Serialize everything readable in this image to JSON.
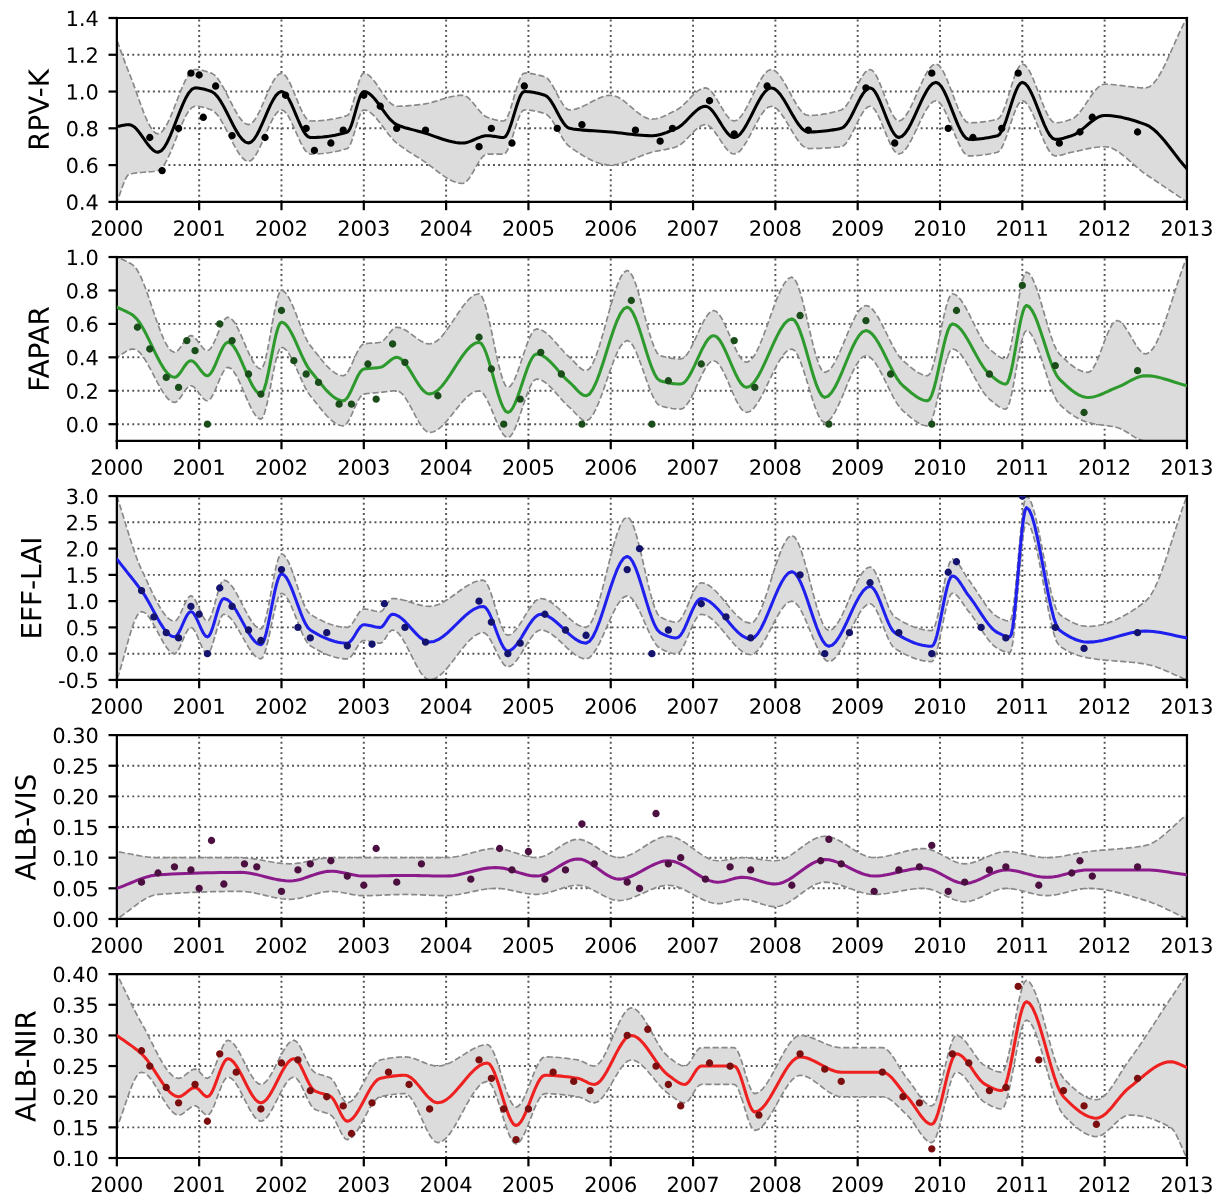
{
  "chart_data": [
    {
      "type": "line",
      "ylabel": "RPV-K",
      "xlim": [
        2000,
        2013
      ],
      "xticks": [
        2000,
        2001,
        2002,
        2003,
        2004,
        2005,
        2006,
        2007,
        2008,
        2009,
        2010,
        2011,
        2012,
        2013
      ],
      "ylim": [
        0.4,
        1.4
      ],
      "yticks": [
        0.4,
        0.6,
        0.8,
        {
          "value": 1,
          "label": "1.0"
        },
        1.2,
        1.4
      ],
      "grid": true,
      "series": [
        {
          "type": "line",
          "color": "#000000",
          "line_style": "solid",
          "x": [
            2000,
            2000.15,
            2000.5,
            2000.95,
            2001.15,
            2001.6,
            2002.0,
            2002.35,
            2002.8,
            2003.0,
            2003.4,
            2003.7,
            2004.2,
            2004.5,
            2004.7,
            2004.95,
            2005.2,
            2005.5,
            2006.0,
            2006.5,
            2006.8,
            2007.15,
            2007.5,
            2007.95,
            2008.4,
            2008.8,
            2009.15,
            2009.5,
            2009.95,
            2010.35,
            2010.7,
            2011.0,
            2011.4,
            2011.6,
            2012.0,
            2012.5,
            2013
          ],
          "values": [
            0.81,
            0.82,
            0.67,
            1.02,
            1.0,
            0.72,
            1.0,
            0.75,
            0.78,
            1.0,
            0.82,
            0.78,
            0.72,
            0.76,
            0.75,
            1.0,
            0.98,
            0.8,
            0.78,
            0.76,
            0.8,
            0.92,
            0.75,
            1.02,
            0.78,
            0.8,
            1.02,
            0.75,
            1.05,
            0.74,
            0.76,
            1.05,
            0.74,
            0.76,
            0.87,
            0.82,
            0.58
          ],
          "lower": [
            0.4,
            0.55,
            0.57,
            0.92,
            0.9,
            0.62,
            0.9,
            0.66,
            0.69,
            0.9,
            0.72,
            0.63,
            0.5,
            0.66,
            0.66,
            0.9,
            0.88,
            0.7,
            0.6,
            0.67,
            0.7,
            0.82,
            0.66,
            0.92,
            0.69,
            0.7,
            0.92,
            0.66,
            0.95,
            0.65,
            0.67,
            0.95,
            0.65,
            0.67,
            0.7,
            0.55,
            0.4
          ],
          "upper": [
            1.28,
            1.1,
            0.77,
            1.12,
            1.1,
            0.82,
            1.1,
            0.84,
            0.87,
            1.1,
            0.92,
            0.93,
            0.98,
            0.86,
            0.84,
            1.1,
            1.08,
            0.9,
            0.98,
            0.85,
            0.9,
            1.02,
            0.84,
            1.12,
            0.87,
            0.9,
            1.12,
            0.84,
            1.15,
            0.83,
            0.85,
            1.15,
            0.83,
            0.85,
            1.04,
            1.02,
            1.4
          ]
        },
        {
          "type": "scatter",
          "color": "#000000",
          "marker": "circle",
          "x": [
            2000.4,
            2000.55,
            2000.75,
            2000.9,
            2001.0,
            2001.05,
            2001.2,
            2001.4,
            2001.8,
            2002.05,
            2002.3,
            2002.4,
            2002.6,
            2002.75,
            2003.0,
            2003.2,
            2003.4,
            2003.75,
            2004.4,
            2004.55,
            2004.8,
            2004.95,
            2005.35,
            2005.65,
            2006.3,
            2006.6,
            2006.75,
            2007.2,
            2007.5,
            2007.9,
            2008.4,
            2009.1,
            2009.45,
            2009.9,
            2010.1,
            2010.4,
            2010.75,
            2010.95,
            2011.45,
            2011.7,
            2011.85,
            2012.4
          ],
          "values": [
            0.75,
            0.57,
            0.8,
            1.1,
            1.09,
            0.86,
            1.03,
            0.76,
            0.75,
            0.98,
            0.8,
            0.68,
            0.72,
            0.79,
            0.98,
            0.92,
            0.8,
            0.79,
            0.7,
            0.8,
            0.72,
            1.03,
            0.8,
            0.82,
            0.79,
            0.73,
            0.8,
            0.95,
            0.77,
            1.03,
            0.79,
            1.02,
            0.72,
            1.1,
            0.8,
            0.75,
            0.8,
            1.1,
            0.72,
            0.78,
            0.86,
            0.78
          ]
        }
      ]
    },
    {
      "type": "line",
      "ylabel": "FAPAR",
      "xlim": [
        2000,
        2013
      ],
      "xticks": [
        2000,
        2001,
        2002,
        2003,
        2004,
        2005,
        2006,
        2007,
        2008,
        2009,
        2010,
        2011,
        2012,
        2013
      ],
      "ylim": [
        -0.1,
        1.0
      ],
      "yticks": [
        {
          "value": 0,
          "label": "0.0"
        },
        0.2,
        0.4,
        0.6,
        0.8,
        {
          "value": 1,
          "label": "1.0"
        }
      ],
      "grid": true,
      "series": [
        {
          "type": "line",
          "color": "#2e9a2e",
          "line_style": "solid",
          "x": [
            2000,
            2000.2,
            2000.7,
            2000.9,
            2001.1,
            2001.35,
            2001.75,
            2002.0,
            2002.35,
            2002.75,
            2003.0,
            2003.2,
            2003.4,
            2003.8,
            2004.4,
            2004.75,
            2005.1,
            2005.5,
            2005.7,
            2006.2,
            2006.6,
            2006.85,
            2007.25,
            2007.65,
            2008.2,
            2008.6,
            2009.1,
            2009.55,
            2009.85,
            2010.15,
            2010.6,
            2010.8,
            2011.05,
            2011.45,
            2011.8,
            2012.15,
            2012.5,
            2013
          ],
          "values": [
            0.7,
            0.65,
            0.28,
            0.38,
            0.29,
            0.49,
            0.18,
            0.61,
            0.32,
            0.14,
            0.33,
            0.34,
            0.4,
            0.18,
            0.49,
            0.07,
            0.42,
            0.25,
            0.17,
            0.7,
            0.26,
            0.24,
            0.53,
            0.22,
            0.63,
            0.16,
            0.56,
            0.23,
            0.14,
            0.6,
            0.3,
            0.24,
            0.71,
            0.27,
            0.16,
            0.22,
            0.29,
            0.23
          ],
          "lower": [
            0.4,
            0.45,
            0.13,
            0.23,
            0.14,
            0.34,
            0.03,
            0.46,
            0.17,
            -0.01,
            0.18,
            0.19,
            0.2,
            -0.05,
            0.2,
            -0.08,
            0.27,
            0.1,
            0.02,
            0.5,
            0.11,
            0.09,
            0.38,
            0.07,
            0.45,
            0.01,
            0.41,
            0.08,
            -0.01,
            0.45,
            0.15,
            0.09,
            0.56,
            0.12,
            0.01,
            -0.02,
            -0.1,
            -0.1
          ],
          "upper": [
            1.0,
            0.95,
            0.43,
            0.53,
            0.44,
            0.64,
            0.33,
            0.8,
            0.47,
            0.29,
            0.48,
            0.49,
            0.58,
            0.48,
            0.78,
            0.22,
            0.57,
            0.4,
            0.32,
            0.92,
            0.41,
            0.39,
            0.68,
            0.37,
            0.88,
            0.31,
            0.71,
            0.38,
            0.29,
            0.78,
            0.45,
            0.39,
            0.91,
            0.42,
            0.31,
            0.62,
            0.42,
            1.0
          ]
        },
        {
          "type": "scatter",
          "color": "#1b4d1b",
          "marker": "circle",
          "x": [
            2000.25,
            2000.4,
            2000.6,
            2000.75,
            2000.85,
            2000.95,
            2001.1,
            2001.25,
            2001.4,
            2001.6,
            2001.75,
            2002.0,
            2002.15,
            2002.3,
            2002.45,
            2002.7,
            2002.85,
            2003.05,
            2003.15,
            2003.35,
            2003.5,
            2003.9,
            2004.4,
            2004.55,
            2004.7,
            2004.9,
            2005.15,
            2005.4,
            2005.65,
            2006.25,
            2006.5,
            2006.7,
            2007.1,
            2007.5,
            2007.75,
            2008.3,
            2008.65,
            2009.1,
            2009.4,
            2009.9,
            2010.2,
            2010.6,
            2011.0,
            2011.4,
            2011.75,
            2012.4
          ],
          "values": [
            0.58,
            0.45,
            0.28,
            0.22,
            0.5,
            0.44,
            0.0,
            0.6,
            0.5,
            0.3,
            0.18,
            0.68,
            0.38,
            0.3,
            0.25,
            0.12,
            0.12,
            0.36,
            0.15,
            0.48,
            0.37,
            0.17,
            0.52,
            0.33,
            0.0,
            0.15,
            0.43,
            0.3,
            0.0,
            0.74,
            0.0,
            0.26,
            0.36,
            0.5,
            0.22,
            0.65,
            0.0,
            0.62,
            0.3,
            0.0,
            0.68,
            0.3,
            0.83,
            0.35,
            0.07,
            0.32
          ]
        }
      ]
    },
    {
      "type": "line",
      "ylabel": "EFF-LAI",
      "xlim": [
        2000,
        2013
      ],
      "xticks": [
        2000,
        2001,
        2002,
        2003,
        2004,
        2005,
        2006,
        2007,
        2008,
        2009,
        2010,
        2011,
        2012,
        2013
      ],
      "ylim": [
        -0.5,
        3.0
      ],
      "yticks": [
        {
          "value": -0.5,
          "label": "-0.5"
        },
        {
          "value": 0,
          "label": "0.0"
        },
        0.5,
        {
          "value": 1,
          "label": "1.0"
        },
        1.5,
        {
          "value": 2,
          "label": "2.0"
        },
        2.5,
        {
          "value": 3,
          "label": "3.0"
        }
      ],
      "grid": true,
      "series": [
        {
          "type": "line",
          "color": "#2020ee",
          "line_style": "solid",
          "x": [
            2000,
            2000.3,
            2000.7,
            2000.9,
            2001.1,
            2001.3,
            2001.75,
            2002.0,
            2002.35,
            2002.8,
            2003.0,
            2003.2,
            2003.35,
            2003.8,
            2004.45,
            2004.75,
            2005.15,
            2005.7,
            2006.2,
            2006.6,
            2006.8,
            2007.1,
            2007.7,
            2008.2,
            2008.65,
            2009.15,
            2009.45,
            2009.9,
            2010.15,
            2010.35,
            2010.7,
            2010.85,
            2011.05,
            2011.45,
            2011.8,
            2012.5,
            2013
          ],
          "values": [
            1.8,
            1.2,
            0.32,
            0.8,
            0.32,
            1.05,
            0.17,
            1.52,
            0.45,
            0.2,
            0.55,
            0.5,
            0.75,
            0.22,
            0.9,
            0.05,
            0.75,
            0.2,
            1.85,
            0.4,
            0.3,
            1.05,
            0.28,
            1.56,
            0.14,
            1.28,
            0.4,
            0.14,
            1.48,
            1.1,
            0.4,
            0.32,
            2.78,
            0.45,
            0.22,
            0.43,
            0.3
          ],
          "lower": [
            -0.5,
            0.8,
            0.0,
            0.5,
            0.0,
            0.75,
            -0.1,
            1.15,
            0.15,
            -0.1,
            0.25,
            0.2,
            0.45,
            -0.5,
            0.4,
            -0.25,
            0.45,
            -0.1,
            1.1,
            0.1,
            0.0,
            0.75,
            -0.02,
            1.0,
            -0.15,
            0.95,
            0.1,
            -0.15,
            1.15,
            0.8,
            0.1,
            0.02,
            2.5,
            0.15,
            -0.08,
            -0.2,
            -0.5
          ],
          "upper": [
            3.0,
            1.6,
            0.62,
            1.1,
            0.62,
            1.4,
            0.47,
            1.9,
            0.75,
            0.5,
            0.85,
            0.8,
            1.05,
            0.9,
            1.4,
            0.35,
            1.05,
            0.5,
            2.6,
            0.7,
            0.6,
            1.35,
            0.58,
            2.25,
            0.44,
            1.65,
            0.7,
            0.44,
            1.8,
            1.4,
            0.7,
            0.62,
            3.0,
            0.75,
            0.52,
            1.0,
            3.0
          ]
        },
        {
          "type": "scatter",
          "color": "#14146e",
          "marker": "circle",
          "x": [
            2000.3,
            2000.45,
            2000.6,
            2000.75,
            2000.9,
            2001.0,
            2001.1,
            2001.25,
            2001.4,
            2001.6,
            2001.75,
            2002.0,
            2002.2,
            2002.35,
            2002.55,
            2002.8,
            2003.1,
            2003.25,
            2003.5,
            2003.75,
            2004.4,
            2004.55,
            2004.75,
            2004.9,
            2005.2,
            2005.45,
            2005.7,
            2006.2,
            2006.35,
            2006.5,
            2006.7,
            2007.1,
            2007.4,
            2007.7,
            2008.3,
            2008.6,
            2008.9,
            2009.15,
            2009.5,
            2009.9,
            2010.1,
            2010.2,
            2010.5,
            2010.8,
            2011.0,
            2011.4,
            2011.75,
            2012.4
          ],
          "values": [
            1.2,
            0.7,
            0.4,
            0.3,
            0.9,
            0.75,
            0.0,
            1.25,
            0.9,
            0.45,
            0.25,
            1.6,
            0.5,
            0.3,
            0.4,
            0.15,
            0.18,
            0.95,
            0.5,
            0.22,
            1.0,
            0.6,
            0.0,
            0.2,
            0.75,
            0.45,
            0.35,
            1.6,
            2.0,
            0.0,
            0.45,
            0.95,
            0.7,
            0.3,
            1.5,
            0.0,
            0.4,
            1.35,
            0.4,
            0.0,
            1.55,
            1.75,
            0.5,
            0.3,
            3.0,
            0.5,
            0.1,
            0.4
          ]
        }
      ]
    },
    {
      "type": "line",
      "ylabel": "ALB-VIS",
      "xlim": [
        2000,
        2013
      ],
      "xticks": [
        2000,
        2001,
        2002,
        2003,
        2004,
        2005,
        2006,
        2007,
        2008,
        2009,
        2010,
        2011,
        2012,
        2013
      ],
      "ylim": [
        0.0,
        0.3
      ],
      "yticks": [
        {
          "value": 0.0,
          "label": "0.00"
        },
        {
          "value": 0.05,
          "label": "0.05"
        },
        {
          "value": 0.1,
          "label": "0.10"
        },
        {
          "value": 0.15,
          "label": "0.15"
        },
        {
          "value": 0.2,
          "label": "0.20"
        },
        {
          "value": 0.25,
          "label": "0.25"
        },
        {
          "value": 0.3,
          "label": "0.30"
        }
      ],
      "grid": true,
      "series": [
        {
          "type": "line",
          "color": "#8b1a8b",
          "line_style": "solid",
          "x": [
            2000,
            2000.5,
            2001.5,
            2002.1,
            2002.6,
            2003.0,
            2003.5,
            2004.0,
            2004.6,
            2005.1,
            2005.6,
            2006.1,
            2006.7,
            2007.3,
            2007.6,
            2008.0,
            2008.6,
            2009.2,
            2009.8,
            2010.3,
            2010.8,
            2011.3,
            2011.8,
            2012.5,
            2013
          ],
          "values": [
            0.05,
            0.072,
            0.076,
            0.062,
            0.078,
            0.07,
            0.071,
            0.07,
            0.084,
            0.07,
            0.098,
            0.065,
            0.095,
            0.06,
            0.068,
            0.057,
            0.097,
            0.07,
            0.083,
            0.058,
            0.08,
            0.068,
            0.08,
            0.08,
            0.072
          ],
          "lower": [
            0.0,
            0.04,
            0.045,
            0.032,
            0.045,
            0.038,
            0.04,
            0.038,
            0.05,
            0.04,
            0.055,
            0.03,
            0.055,
            0.025,
            0.032,
            0.02,
            0.06,
            0.04,
            0.05,
            0.028,
            0.05,
            0.038,
            0.05,
            0.03,
            0.0
          ],
          "upper": [
            0.11,
            0.1,
            0.1,
            0.09,
            0.1,
            0.1,
            0.1,
            0.1,
            0.115,
            0.1,
            0.13,
            0.1,
            0.135,
            0.095,
            0.1,
            0.095,
            0.135,
            0.1,
            0.115,
            0.09,
            0.11,
            0.1,
            0.11,
            0.12,
            0.17
          ]
        },
        {
          "type": "scatter",
          "color": "#4b1040",
          "marker": "circle",
          "x": [
            2000.3,
            2000.5,
            2000.7,
            2000.9,
            2001.0,
            2001.15,
            2001.3,
            2001.55,
            2001.7,
            2002.0,
            2002.2,
            2002.35,
            2002.6,
            2002.8,
            2003.0,
            2003.15,
            2003.4,
            2003.7,
            2004.3,
            2004.65,
            2004.8,
            2005.0,
            2005.2,
            2005.45,
            2005.65,
            2005.8,
            2006.2,
            2006.35,
            2006.55,
            2006.7,
            2006.85,
            2007.15,
            2007.45,
            2007.7,
            2008.2,
            2008.55,
            2008.65,
            2008.8,
            2009.2,
            2009.5,
            2009.75,
            2009.9,
            2010.1,
            2010.3,
            2010.6,
            2010.8,
            2011.2,
            2011.6,
            2011.7,
            2011.85,
            2012.4
          ],
          "values": [
            0.06,
            0.075,
            0.085,
            0.08,
            0.05,
            0.128,
            0.057,
            0.09,
            0.085,
            0.045,
            0.08,
            0.09,
            0.095,
            0.07,
            0.055,
            0.115,
            0.06,
            0.09,
            0.065,
            0.115,
            0.08,
            0.11,
            0.065,
            0.08,
            0.155,
            0.09,
            0.06,
            0.05,
            0.172,
            0.09,
            0.1,
            0.065,
            0.085,
            0.08,
            0.055,
            0.095,
            0.13,
            0.09,
            0.045,
            0.08,
            0.085,
            0.12,
            0.045,
            0.06,
            0.08,
            0.085,
            0.055,
            0.075,
            0.095,
            0.07,
            0.085
          ]
        }
      ]
    },
    {
      "type": "line",
      "ylabel": "ALB-NIR",
      "xlim": [
        2000,
        2013
      ],
      "xticks": [
        2000,
        2001,
        2002,
        2003,
        2004,
        2005,
        2006,
        2007,
        2008,
        2009,
        2010,
        2011,
        2012,
        2013
      ],
      "ylim": [
        0.1,
        0.4
      ],
      "yticks": [
        {
          "value": 0.1,
          "label": "0.10"
        },
        {
          "value": 0.15,
          "label": "0.15"
        },
        {
          "value": 0.2,
          "label": "0.20"
        },
        {
          "value": 0.25,
          "label": "0.25"
        },
        {
          "value": 0.3,
          "label": "0.30"
        },
        {
          "value": 0.35,
          "label": "0.35"
        },
        {
          "value": 0.4,
          "label": "0.40"
        }
      ],
      "grid": true,
      "series": [
        {
          "type": "line",
          "color": "#ee2020",
          "line_style": "solid",
          "x": [
            2000,
            2000.3,
            2000.75,
            2000.95,
            2001.1,
            2001.35,
            2001.75,
            2002.15,
            2002.4,
            2002.6,
            2002.8,
            2003.2,
            2003.5,
            2003.9,
            2004.5,
            2004.85,
            2005.2,
            2005.6,
            2005.8,
            2006.25,
            2006.7,
            2006.9,
            2007.1,
            2007.5,
            2007.75,
            2008.3,
            2008.8,
            2009.3,
            2009.6,
            2009.9,
            2010.2,
            2010.55,
            2010.75,
            2011.05,
            2011.5,
            2011.9,
            2012.3,
            2012.8,
            2013
          ],
          "values": [
            0.3,
            0.27,
            0.2,
            0.215,
            0.2,
            0.262,
            0.19,
            0.262,
            0.21,
            0.2,
            0.16,
            0.23,
            0.235,
            0.19,
            0.255,
            0.153,
            0.235,
            0.23,
            0.22,
            0.3,
            0.235,
            0.22,
            0.25,
            0.25,
            0.175,
            0.265,
            0.24,
            0.24,
            0.2,
            0.155,
            0.27,
            0.22,
            0.21,
            0.355,
            0.2,
            0.165,
            0.215,
            0.257,
            0.248
          ],
          "lower": [
            0.15,
            0.24,
            0.17,
            0.185,
            0.17,
            0.232,
            0.16,
            0.232,
            0.18,
            0.17,
            0.13,
            0.2,
            0.205,
            0.125,
            0.225,
            0.123,
            0.205,
            0.2,
            0.19,
            0.26,
            0.205,
            0.19,
            0.22,
            0.22,
            0.145,
            0.235,
            0.2,
            0.2,
            0.17,
            0.125,
            0.24,
            0.19,
            0.18,
            0.325,
            0.17,
            0.135,
            0.17,
            0.15,
            0.1
          ],
          "upper": [
            0.4,
            0.32,
            0.23,
            0.245,
            0.23,
            0.292,
            0.22,
            0.292,
            0.24,
            0.23,
            0.19,
            0.26,
            0.265,
            0.25,
            0.285,
            0.183,
            0.265,
            0.26,
            0.25,
            0.345,
            0.265,
            0.25,
            0.28,
            0.28,
            0.205,
            0.3,
            0.28,
            0.28,
            0.23,
            0.185,
            0.3,
            0.25,
            0.24,
            0.39,
            0.23,
            0.195,
            0.26,
            0.36,
            0.4
          ]
        },
        {
          "type": "scatter",
          "color": "#7b0f0f",
          "marker": "circle",
          "x": [
            2000.3,
            2000.4,
            2000.6,
            2000.75,
            2000.95,
            2001.1,
            2001.25,
            2001.45,
            2001.75,
            2002.0,
            2002.2,
            2002.35,
            2002.55,
            2002.75,
            2002.85,
            2003.1,
            2003.3,
            2003.55,
            2003.8,
            2004.4,
            2004.55,
            2004.7,
            2004.85,
            2005.0,
            2005.3,
            2005.55,
            2005.75,
            2006.2,
            2006.45,
            2006.55,
            2006.7,
            2006.85,
            2007.2,
            2007.45,
            2007.8,
            2008.3,
            2008.6,
            2008.8,
            2009.3,
            2009.55,
            2009.75,
            2009.9,
            2010.15,
            2010.35,
            2010.6,
            2010.8,
            2010.95,
            2011.2,
            2011.5,
            2011.75,
            2011.9,
            2012.4
          ],
          "values": [
            0.275,
            0.25,
            0.215,
            0.19,
            0.22,
            0.16,
            0.27,
            0.24,
            0.18,
            0.255,
            0.26,
            0.21,
            0.2,
            0.185,
            0.14,
            0.19,
            0.24,
            0.22,
            0.18,
            0.26,
            0.23,
            0.18,
            0.13,
            0.18,
            0.24,
            0.225,
            0.21,
            0.3,
            0.31,
            0.25,
            0.22,
            0.185,
            0.255,
            0.25,
            0.17,
            0.27,
            0.245,
            0.225,
            0.24,
            0.2,
            0.19,
            0.115,
            0.27,
            0.255,
            0.21,
            0.215,
            0.38,
            0.26,
            0.21,
            0.185,
            0.155,
            0.23
          ]
        }
      ]
    }
  ]
}
